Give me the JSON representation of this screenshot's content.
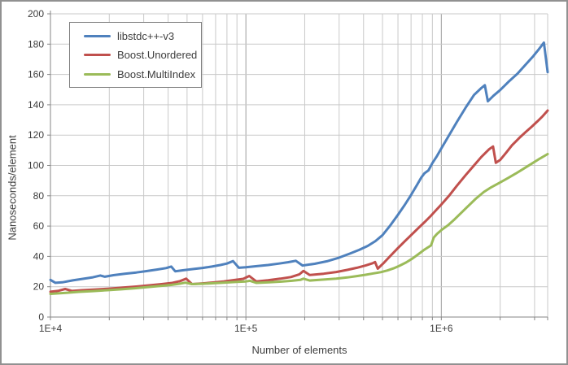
{
  "chart_data": {
    "type": "line",
    "title": "",
    "xlabel": "Number of elements",
    "ylabel": "Nanoseconds/element",
    "grid": true,
    "legend_position": "top-left",
    "x_axis": {
      "scale": "log",
      "min": 10000,
      "max": 3500000,
      "labeled_ticks": [
        {
          "value": 10000,
          "label": "1E+4"
        },
        {
          "value": 100000,
          "label": "1E+5"
        },
        {
          "value": 1000000,
          "label": "1E+6"
        }
      ]
    },
    "y_axis": {
      "min": 0,
      "max": 200,
      "step": 20
    },
    "series": [
      {
        "name": "libstdc++-v3",
        "color": "#4F81BD",
        "points": [
          [
            10000,
            24.5
          ],
          [
            10600,
            22.6
          ],
          [
            11500,
            22.9
          ],
          [
            13000,
            24.2
          ],
          [
            15000,
            25.4
          ],
          [
            16500,
            26.2
          ],
          [
            18000,
            27.4
          ],
          [
            19000,
            26.6
          ],
          [
            21000,
            27.6
          ],
          [
            24000,
            28.5
          ],
          [
            27500,
            29.4
          ],
          [
            31000,
            30.3
          ],
          [
            35000,
            31.3
          ],
          [
            39000,
            32.3
          ],
          [
            41500,
            33.3
          ],
          [
            43500,
            30.2
          ],
          [
            48000,
            30.9
          ],
          [
            54000,
            31.7
          ],
          [
            60000,
            32.4
          ],
          [
            67000,
            33.3
          ],
          [
            74000,
            34.3
          ],
          [
            80000,
            35.3
          ],
          [
            86000,
            36.9
          ],
          [
            92000,
            32.5
          ],
          [
            100000,
            32.8
          ],
          [
            115000,
            33.6
          ],
          [
            130000,
            34.3
          ],
          [
            148000,
            35.3
          ],
          [
            165000,
            36.2
          ],
          [
            180000,
            37.1
          ],
          [
            195000,
            34.0
          ],
          [
            225000,
            35.1
          ],
          [
            260000,
            36.8
          ],
          [
            300000,
            39.2
          ],
          [
            340000,
            41.8
          ],
          [
            380000,
            44.3
          ],
          [
            420000,
            46.9
          ],
          [
            460000,
            50.1
          ],
          [
            500000,
            54.0
          ],
          [
            545000,
            60.0
          ],
          [
            600000,
            67.5
          ],
          [
            650000,
            74.0
          ],
          [
            700000,
            80.5
          ],
          [
            750000,
            87.0
          ],
          [
            790000,
            92.0
          ],
          [
            820000,
            94.8
          ],
          [
            860000,
            96.8
          ],
          [
            900000,
            101.5
          ],
          [
            950000,
            106.2
          ],
          [
            1000000,
            111.2
          ],
          [
            1100000,
            120.3
          ],
          [
            1200000,
            128.6
          ],
          [
            1330000,
            138.0
          ],
          [
            1470000,
            146.5
          ],
          [
            1600000,
            151.0
          ],
          [
            1670000,
            152.9
          ],
          [
            1730000,
            142.3
          ],
          [
            1850000,
            146.0
          ],
          [
            2000000,
            149.7
          ],
          [
            2200000,
            155.0
          ],
          [
            2450000,
            160.5
          ],
          [
            2700000,
            166.5
          ],
          [
            2950000,
            172.0
          ],
          [
            3150000,
            176.5
          ],
          [
            3350000,
            181.0
          ],
          [
            3500000,
            161.5
          ]
        ]
      },
      {
        "name": "Boost.Unordered",
        "color": "#C0504D",
        "points": [
          [
            10000,
            16.7
          ],
          [
            11000,
            17.3
          ],
          [
            11900,
            18.5
          ],
          [
            12900,
            17.2
          ],
          [
            14500,
            17.7
          ],
          [
            17000,
            18.2
          ],
          [
            20000,
            18.7
          ],
          [
            23500,
            19.4
          ],
          [
            27500,
            20.1
          ],
          [
            32000,
            20.9
          ],
          [
            37000,
            21.7
          ],
          [
            42000,
            22.5
          ],
          [
            46000,
            23.7
          ],
          [
            49500,
            25.3
          ],
          [
            53000,
            21.7
          ],
          [
            60000,
            22.2
          ],
          [
            68000,
            22.8
          ],
          [
            77000,
            23.5
          ],
          [
            87000,
            24.4
          ],
          [
            97000,
            25.2
          ],
          [
            104000,
            27.1
          ],
          [
            113000,
            23.5
          ],
          [
            130000,
            24.3
          ],
          [
            150000,
            25.3
          ],
          [
            170000,
            26.4
          ],
          [
            188000,
            28.2
          ],
          [
            197000,
            30.4
          ],
          [
            212000,
            27.7
          ],
          [
            250000,
            28.6
          ],
          [
            290000,
            29.7
          ],
          [
            330000,
            31.1
          ],
          [
            370000,
            32.5
          ],
          [
            410000,
            34.0
          ],
          [
            445000,
            35.5
          ],
          [
            458000,
            36.3
          ],
          [
            473000,
            31.9
          ],
          [
            510000,
            36.0
          ],
          [
            550000,
            40.5
          ],
          [
            600000,
            45.5
          ],
          [
            650000,
            50.0
          ],
          [
            700000,
            54.0
          ],
          [
            760000,
            58.5
          ],
          [
            820000,
            62.5
          ],
          [
            880000,
            66.5
          ],
          [
            940000,
            70.5
          ],
          [
            1000000,
            74.2
          ],
          [
            1100000,
            80.3
          ],
          [
            1200000,
            86.5
          ],
          [
            1330000,
            93.5
          ],
          [
            1470000,
            100.0
          ],
          [
            1600000,
            105.5
          ],
          [
            1750000,
            110.5
          ],
          [
            1840000,
            112.5
          ],
          [
            1900000,
            101.7
          ],
          [
            2000000,
            103.6
          ],
          [
            2150000,
            108.5
          ],
          [
            2300000,
            113.3
          ],
          [
            2500000,
            118.0
          ],
          [
            2700000,
            122.0
          ],
          [
            2900000,
            125.5
          ],
          [
            3100000,
            129.0
          ],
          [
            3300000,
            132.5
          ],
          [
            3500000,
            136.2
          ]
        ]
      },
      {
        "name": "Boost.MultiIndex",
        "color": "#9BBB59",
        "points": [
          [
            10000,
            15.3
          ],
          [
            12000,
            16.0
          ],
          [
            14000,
            16.6
          ],
          [
            16500,
            17.1
          ],
          [
            19500,
            17.7
          ],
          [
            23000,
            18.3
          ],
          [
            27000,
            19.0
          ],
          [
            31500,
            19.8
          ],
          [
            36500,
            20.5
          ],
          [
            41500,
            21.2
          ],
          [
            45500,
            21.9
          ],
          [
            49000,
            22.7
          ],
          [
            53000,
            21.7
          ],
          [
            61000,
            22.0
          ],
          [
            70000,
            22.4
          ],
          [
            80000,
            22.8
          ],
          [
            90000,
            23.2
          ],
          [
            100000,
            23.5
          ],
          [
            105000,
            23.9
          ],
          [
            113000,
            22.5
          ],
          [
            132000,
            22.9
          ],
          [
            152000,
            23.4
          ],
          [
            172000,
            23.9
          ],
          [
            190000,
            24.5
          ],
          [
            197000,
            25.3
          ],
          [
            212000,
            24.1
          ],
          [
            250000,
            24.7
          ],
          [
            290000,
            25.3
          ],
          [
            330000,
            26.1
          ],
          [
            370000,
            27.0
          ],
          [
            410000,
            27.9
          ],
          [
            450000,
            28.8
          ],
          [
            490000,
            29.6
          ],
          [
            530000,
            30.7
          ],
          [
            570000,
            32.1
          ],
          [
            610000,
            33.8
          ],
          [
            660000,
            36.0
          ],
          [
            710000,
            38.5
          ],
          [
            760000,
            41.3
          ],
          [
            810000,
            44.0
          ],
          [
            850000,
            45.8
          ],
          [
            885000,
            47.2
          ],
          [
            915000,
            52.5
          ],
          [
            950000,
            54.8
          ],
          [
            1000000,
            57.3
          ],
          [
            1080000,
            60.5
          ],
          [
            1170000,
            64.5
          ],
          [
            1270000,
            69.0
          ],
          [
            1380000,
            73.5
          ],
          [
            1500000,
            78.0
          ],
          [
            1650000,
            82.5
          ],
          [
            1800000,
            85.6
          ],
          [
            2000000,
            88.8
          ],
          [
            2200000,
            91.8
          ],
          [
            2400000,
            94.6
          ],
          [
            2650000,
            98.0
          ],
          [
            2900000,
            101.2
          ],
          [
            3200000,
            104.6
          ],
          [
            3500000,
            107.5
          ]
        ]
      }
    ],
    "colors": {
      "minor_grid": "#C9C9C9",
      "major_grid": "#9E9E9E",
      "axis": "#868686",
      "text": "#3d3d3d",
      "outer_border": "#919191",
      "legend_border": "#7f7f7f"
    }
  }
}
